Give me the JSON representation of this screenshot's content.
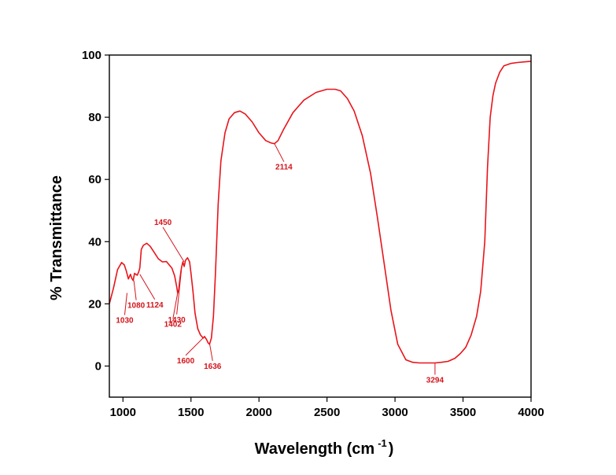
{
  "chart_data": {
    "type": "line",
    "xlabel": "Wavelength (cm",
    "xlabel_superscript": "-1",
    "xlabel_suffix": ")",
    "ylabel": "% Transmittance",
    "xlim": [
      900,
      4000
    ],
    "ylim": [
      -10,
      100
    ],
    "x_ticks": [
      1000,
      1500,
      2000,
      2500,
      3000,
      3500,
      4000
    ],
    "y_ticks": [
      0,
      20,
      40,
      60,
      80,
      100
    ],
    "grid": false,
    "line_color": "#e8141b",
    "label_color": "#d4141b",
    "series": [
      {
        "x": [
          900,
          930,
          960,
          990,
          1010,
          1025,
          1040,
          1055,
          1065,
          1075,
          1085,
          1095,
          1105,
          1115,
          1124,
          1135,
          1150,
          1175,
          1200,
          1230,
          1260,
          1290,
          1320,
          1340,
          1360,
          1380,
          1395,
          1402,
          1410,
          1420,
          1430,
          1440,
          1450,
          1460,
          1475,
          1490,
          1500,
          1515,
          1530,
          1550,
          1570,
          1590,
          1600,
          1615,
          1625,
          1636,
          1650,
          1665,
          1680,
          1700,
          1720,
          1750,
          1780,
          1820,
          1860,
          1900,
          1950,
          2000,
          2050,
          2090,
          2114,
          2140,
          2180,
          2250,
          2330,
          2420,
          2500,
          2560,
          2600,
          2650,
          2700,
          2760,
          2820,
          2870,
          2920,
          2970,
          3020,
          3080,
          3130,
          3180,
          3230,
          3294,
          3340,
          3390,
          3440,
          3480,
          3520,
          3560,
          3600,
          3630,
          3660,
          3680,
          3700,
          3720,
          3740,
          3770,
          3800,
          3850,
          3900,
          3950,
          4000
        ],
        "y": [
          20,
          25,
          31,
          33.3,
          32.5,
          30.5,
          28,
          29.5,
          28.2,
          27.5,
          29.8,
          29.5,
          29.2,
          30.2,
          31.5,
          37.5,
          38.8,
          39.5,
          38.5,
          36.5,
          34.5,
          33.5,
          33.6,
          32.5,
          31.5,
          29,
          25.5,
          23.5,
          24.5,
          28.5,
          31.5,
          33.5,
          32,
          34,
          34.8,
          33.5,
          30,
          24,
          17,
          12,
          10,
          9,
          9.5,
          8.5,
          7.5,
          7,
          9,
          16,
          30,
          52,
          66,
          75,
          79.5,
          81.5,
          82,
          81,
          78.5,
          75,
          72.5,
          71.7,
          71.5,
          72.5,
          76,
          81.5,
          85.5,
          88,
          89,
          89,
          88.5,
          86,
          82,
          74,
          62,
          48,
          33,
          18,
          7,
          2,
          1.2,
          1,
          1,
          1,
          1.2,
          1.5,
          2.5,
          4,
          6,
          10,
          16,
          24,
          40,
          64,
          80,
          87,
          91,
          94.5,
          96.5,
          97.3,
          97.6,
          97.8,
          98
        ]
      }
    ],
    "annotations": [
      {
        "text": "1030",
        "x": 1030,
        "y": 23.5
      },
      {
        "text": "1080",
        "x": 1080,
        "y": 27.5
      },
      {
        "text": "1124",
        "x": 1124,
        "y": 29.5
      },
      {
        "text": "1402",
        "x": 1402,
        "y": 23.5
      },
      {
        "text": "1430",
        "x": 1430,
        "y": 31
      },
      {
        "text": "1450",
        "x": 1450,
        "y": 33.5
      },
      {
        "text": "1600",
        "x": 1600,
        "y": 9.5
      },
      {
        "text": "1636",
        "x": 1636,
        "y": 7.5
      },
      {
        "text": "2114",
        "x": 2114,
        "y": 71.5
      },
      {
        "text": "3294",
        "x": 3294,
        "y": 1
      }
    ]
  }
}
